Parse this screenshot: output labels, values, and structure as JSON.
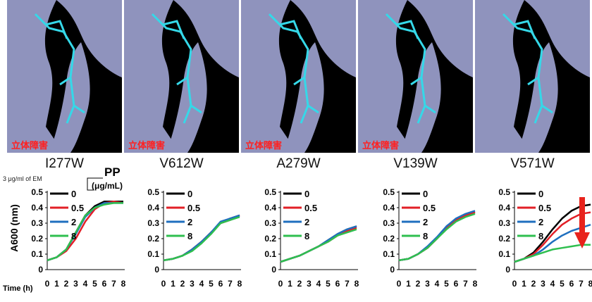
{
  "figure": {
    "em_label": "3 μg/ml of EM",
    "pp_label": "PP",
    "pp_unit": "(μg/mL)",
    "y_axis_label": "A600 (nm)",
    "time_label": "Time (h)",
    "steric_label": "立体障害",
    "mutants": [
      "I277W",
      "V612W",
      "A279W",
      "V139W",
      "V571W"
    ]
  },
  "colors": {
    "conc_0": "#000000",
    "conc_0_5": "#e21f26",
    "conc_2": "#1f6fbf",
    "conc_8": "#2fbf4f",
    "arrow": "#e8231c",
    "surface": "#8f93bd"
  },
  "chart_data": [
    {
      "type": "line",
      "title": "I277W",
      "xlabel": "Time (h)",
      "ylabel": "A600 (nm)",
      "ylim": [
        0,
        0.5
      ],
      "xlim": [
        0,
        8
      ],
      "yticks": [
        "0",
        "0.1",
        "0.2",
        "0.3",
        "0.4",
        "0.5"
      ],
      "xticks": [
        "0",
        "1",
        "2",
        "3",
        "4",
        "5",
        "6",
        "7",
        "8"
      ],
      "legend_title": "PP (μg/mL)",
      "x": [
        0,
        1,
        2,
        3,
        4,
        5,
        6,
        7,
        8
      ],
      "series": [
        {
          "name": "0",
          "values": [
            0.06,
            0.08,
            0.13,
            0.24,
            0.35,
            0.41,
            0.44,
            0.44,
            0.44
          ]
        },
        {
          "name": "0.5",
          "values": [
            0.06,
            0.08,
            0.12,
            0.2,
            0.31,
            0.39,
            0.43,
            0.44,
            0.43
          ]
        },
        {
          "name": "2",
          "values": [
            0.06,
            0.08,
            0.13,
            0.23,
            0.34,
            0.4,
            0.43,
            0.43,
            0.43
          ]
        },
        {
          "name": "8",
          "values": [
            0.06,
            0.08,
            0.13,
            0.24,
            0.35,
            0.4,
            0.42,
            0.43,
            0.43
          ]
        }
      ]
    },
    {
      "type": "line",
      "title": "V612W",
      "ylim": [
        0,
        0.5
      ],
      "xlim": [
        0,
        8
      ],
      "yticks": [
        "0",
        "0.1",
        "0.2",
        "0.3",
        "0.4",
        "0.5"
      ],
      "xticks": [
        "0",
        "1",
        "2",
        "3",
        "4",
        "5",
        "6",
        "7",
        "8"
      ],
      "x": [
        0,
        1,
        2,
        3,
        4,
        5,
        6,
        7,
        8
      ],
      "series": [
        {
          "name": "0",
          "values": [
            0.06,
            0.07,
            0.09,
            0.13,
            0.18,
            0.24,
            0.3,
            0.33,
            0.35
          ]
        },
        {
          "name": "0.5",
          "values": [
            0.06,
            0.07,
            0.09,
            0.13,
            0.18,
            0.24,
            0.3,
            0.32,
            0.35
          ]
        },
        {
          "name": "2",
          "values": [
            0.06,
            0.07,
            0.09,
            0.13,
            0.18,
            0.24,
            0.31,
            0.33,
            0.35
          ]
        },
        {
          "name": "8",
          "values": [
            0.06,
            0.07,
            0.09,
            0.12,
            0.17,
            0.23,
            0.3,
            0.32,
            0.34
          ]
        }
      ]
    },
    {
      "type": "line",
      "title": "A279W",
      "ylim": [
        0,
        0.5
      ],
      "xlim": [
        0,
        8
      ],
      "yticks": [
        "0",
        "0.1",
        "0.2",
        "0.3",
        "0.4",
        "0.5"
      ],
      "xticks": [
        "0",
        "1",
        "2",
        "3",
        "4",
        "5",
        "6",
        "7",
        "8"
      ],
      "x": [
        0,
        1,
        2,
        3,
        4,
        5,
        6,
        7,
        8
      ],
      "series": [
        {
          "name": "0",
          "values": [
            0.05,
            0.07,
            0.09,
            0.12,
            0.15,
            0.19,
            0.23,
            0.26,
            0.28
          ]
        },
        {
          "name": "0.5",
          "values": [
            0.05,
            0.07,
            0.09,
            0.12,
            0.15,
            0.18,
            0.22,
            0.25,
            0.27
          ]
        },
        {
          "name": "2",
          "values": [
            0.05,
            0.07,
            0.09,
            0.12,
            0.15,
            0.19,
            0.23,
            0.26,
            0.28
          ]
        },
        {
          "name": "8",
          "values": [
            0.05,
            0.07,
            0.09,
            0.12,
            0.15,
            0.18,
            0.22,
            0.24,
            0.26
          ]
        }
      ]
    },
    {
      "type": "line",
      "title": "V139W",
      "ylim": [
        0,
        0.5
      ],
      "xlim": [
        0,
        8
      ],
      "yticks": [
        "0",
        "0.1",
        "0.2",
        "0.3",
        "0.4",
        "0.5"
      ],
      "xticks": [
        "0",
        "1",
        "2",
        "3",
        "4",
        "5",
        "6",
        "7",
        "8"
      ],
      "x": [
        0,
        1,
        2,
        3,
        4,
        5,
        6,
        7,
        8
      ],
      "series": [
        {
          "name": "0",
          "values": [
            0.06,
            0.07,
            0.1,
            0.14,
            0.2,
            0.27,
            0.32,
            0.35,
            0.37
          ]
        },
        {
          "name": "0.5",
          "values": [
            0.06,
            0.07,
            0.1,
            0.14,
            0.2,
            0.27,
            0.32,
            0.35,
            0.37
          ]
        },
        {
          "name": "2",
          "values": [
            0.06,
            0.07,
            0.1,
            0.15,
            0.21,
            0.28,
            0.33,
            0.36,
            0.38
          ]
        },
        {
          "name": "8",
          "values": [
            0.06,
            0.07,
            0.1,
            0.14,
            0.2,
            0.26,
            0.31,
            0.34,
            0.36
          ]
        }
      ]
    },
    {
      "type": "line",
      "title": "V571W",
      "ylim": [
        0,
        0.5
      ],
      "xlim": [
        0,
        8
      ],
      "yticks": [
        "0",
        "0.1",
        "0.2",
        "0.3",
        "0.4",
        "0.5"
      ],
      "xticks": [
        "0",
        "1",
        "2",
        "3",
        "4",
        "5",
        "6",
        "7",
        "8"
      ],
      "x": [
        0,
        1,
        2,
        3,
        4,
        5,
        6,
        7,
        8
      ],
      "series": [
        {
          "name": "0",
          "values": [
            0.05,
            0.07,
            0.11,
            0.18,
            0.26,
            0.33,
            0.38,
            0.41,
            0.42
          ]
        },
        {
          "name": "0.5",
          "values": [
            0.05,
            0.07,
            0.1,
            0.16,
            0.23,
            0.29,
            0.33,
            0.36,
            0.37
          ]
        },
        {
          "name": "2",
          "values": [
            0.05,
            0.07,
            0.09,
            0.13,
            0.18,
            0.22,
            0.25,
            0.27,
            0.29
          ]
        },
        {
          "name": "8",
          "values": [
            0.05,
            0.07,
            0.09,
            0.11,
            0.13,
            0.14,
            0.15,
            0.16,
            0.16
          ]
        }
      ]
    }
  ]
}
